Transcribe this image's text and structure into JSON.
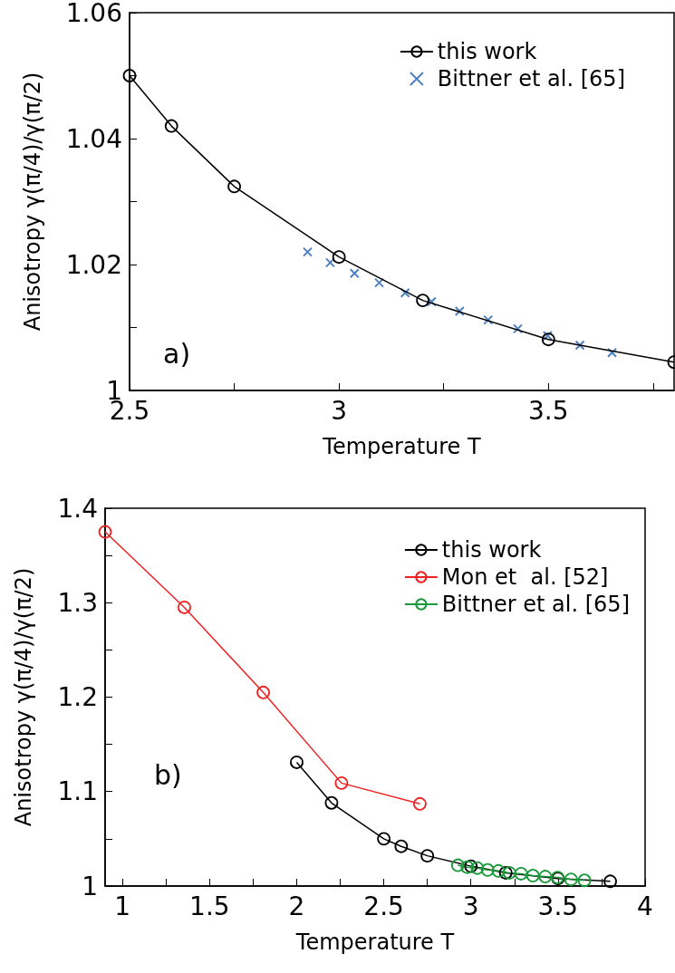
{
  "chart_data": [
    {
      "type": "line",
      "xlabel": "Temperature T",
      "ylabel": "Anisotropy γ(π/4)/γ(π/2)",
      "annotations": [
        "a)"
      ],
      "legend": "top right",
      "grid": false,
      "xlim": [
        2.5,
        3.8
      ],
      "xticks": [
        2.5,
        {
          "value": 2.75,
          "label": null
        },
        3,
        {
          "value": 3.25,
          "label": null
        },
        3.5,
        {
          "value": 3.75,
          "label": null
        }
      ],
      "ylim": [
        1,
        1.06
      ],
      "yticks": [
        1,
        {
          "value": 1.01,
          "label": null
        },
        1.02,
        {
          "value": 1.03,
          "label": null
        },
        1.04,
        {
          "value": 1.05,
          "label": null
        },
        1.06
      ],
      "series": [
        {
          "name": "this work",
          "marker": "circle",
          "color": "#000000",
          "x": [
            2.5,
            2.6,
            2.75,
            3.0,
            3.2,
            3.5,
            3.8
          ],
          "values": [
            1.05,
            1.042,
            1.0324,
            1.0212,
            1.0143,
            1.0081,
            1.0045
          ]
        },
        {
          "name": "Bittner et al. [65]",
          "type": "scatter",
          "marker": "cross",
          "color": "#2060b0",
          "x": [
            2.925,
            2.979,
            3.037,
            3.096,
            3.158,
            3.221,
            3.288,
            3.356,
            3.427,
            3.498,
            3.575,
            3.652
          ],
          "values": [
            1.022,
            1.0203,
            1.0186,
            1.0171,
            1.0155,
            1.0141,
            1.0126,
            1.0112,
            1.0098,
            1.0087,
            1.0072,
            1.006
          ]
        }
      ]
    },
    {
      "type": "line",
      "xlabel": "Temperature T",
      "ylabel": "Anisotropy γ(π/4)/γ(π/2)",
      "annotations": [
        "b)"
      ],
      "legend": "top right",
      "grid": false,
      "marker": "circle",
      "xlim": [
        0.9,
        4
      ],
      "xticks": [
        1,
        {
          "value": 1.25,
          "label": null
        },
        1.5,
        {
          "value": 1.75,
          "label": null
        },
        2,
        {
          "value": 2.25,
          "label": null
        },
        2.5,
        {
          "value": 2.75,
          "label": null
        },
        3,
        {
          "value": 3.25,
          "label": null
        },
        3.5,
        {
          "value": 3.75,
          "label": null
        },
        4
      ],
      "ylim": [
        1,
        1.4
      ],
      "yticks": [
        1,
        {
          "value": 1.05,
          "label": null
        },
        1.1,
        {
          "value": 1.15,
          "label": null
        },
        1.2,
        {
          "value": 1.25,
          "label": null
        },
        1.3,
        {
          "value": 1.35,
          "label": null
        },
        1.4
      ],
      "series": [
        {
          "name": "this work",
          "color": "#000000",
          "x": [
            2.0,
            2.2,
            2.5,
            2.6,
            2.75,
            3.0,
            3.2,
            3.5,
            3.8
          ],
          "values": [
            1.131,
            1.088,
            1.05,
            1.042,
            1.032,
            1.021,
            1.014,
            1.008,
            1.005
          ]
        },
        {
          "name": "Mon et  al. [52]",
          "color": "#ee2222",
          "x": [
            0.9,
            1.355,
            1.808,
            2.257,
            2.707
          ],
          "values": [
            1.375,
            1.295,
            1.205,
            1.109,
            1.087
          ]
        },
        {
          "name": "Bittner et al. [65]",
          "color": "#1a9a3a",
          "x": [
            2.925,
            2.979,
            3.037,
            3.096,
            3.158,
            3.221,
            3.288,
            3.356,
            3.427,
            3.498,
            3.575,
            3.652
          ],
          "values": [
            1.022,
            1.02,
            1.019,
            1.017,
            1.016,
            1.014,
            1.013,
            1.011,
            1.01,
            1.009,
            1.007,
            1.006
          ]
        }
      ]
    }
  ]
}
